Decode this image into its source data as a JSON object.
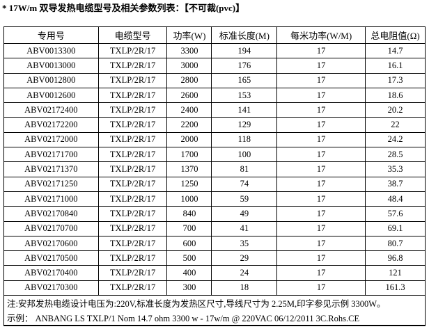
{
  "title": "* 17W/m 双导发热电缆型号及相关参数列表：【不可裁(pvc)】",
  "headers": [
    "专用号",
    "电缆型号",
    "功率(W)",
    "标准长度(M)",
    "每米功率(W/M)",
    "总电阻值(Ω)"
  ],
  "rows": [
    [
      "ABV0013300",
      "TXLP/2R/17",
      "3300",
      "194",
      "17",
      "14.7"
    ],
    [
      "ABV0013000",
      "TXLP/2R/17",
      "3000",
      "176",
      "17",
      "16.1"
    ],
    [
      "ABV0012800",
      "TXLP/2R/17",
      "2800",
      "165",
      "17",
      "17.3"
    ],
    [
      "ABV0012600",
      "TXLP/2R/17",
      "2600",
      "153",
      "17",
      "18.6"
    ],
    [
      "ABV02172400",
      "TXLP/2R/17",
      "2400",
      "141",
      "17",
      "20.2"
    ],
    [
      "ABV02172200",
      "TXLP/2R/17",
      "2200",
      "129",
      "17",
      "22"
    ],
    [
      "ABV02172000",
      "TXLP/2R/17",
      "2000",
      "118",
      "17",
      "24.2"
    ],
    [
      "ABV02171700",
      "TXLP/2R/17",
      "1700",
      "100",
      "17",
      "28.5"
    ],
    [
      "ABV02171370",
      "TXLP/2R/17",
      "1370",
      "81",
      "17",
      "35.3"
    ],
    [
      "ABV02171250",
      "TXLP/2R/17",
      "1250",
      "74",
      "17",
      "38.7"
    ],
    [
      "ABV02171000",
      "TXLP/2R/17",
      "1000",
      "59",
      "17",
      "48.4"
    ],
    [
      "ABV02170840",
      "TXLP/2R/17",
      "840",
      "49",
      "17",
      "57.6"
    ],
    [
      "ABV02170700",
      "TXLP/2R/17",
      "700",
      "41",
      "17",
      "69.1"
    ],
    [
      "ABV02170600",
      "TXLP/2R/17",
      "600",
      "35",
      "17",
      "80.7"
    ],
    [
      "ABV02170500",
      "TXLP/2R/17",
      "500",
      "29",
      "17",
      "96.8"
    ],
    [
      "ABV02170400",
      "TXLP/2R/17",
      "400",
      "24",
      "17",
      "121"
    ],
    [
      "ABV02170300",
      "TXLP/2R/17",
      "300",
      "18",
      "17",
      "161.3"
    ]
  ],
  "note": "注:安邦发热电缆设计电压为:220V,标准长度为发热区尺寸,导线尺寸为 2.25M,印字参见示例 3300W。",
  "example": "示例：  ANBANG LS TXLP/1 Nom 14.7 ohm 3300 w - 17w/m @ 220VAC 06/12/2011 3C.Rohs.CE"
}
